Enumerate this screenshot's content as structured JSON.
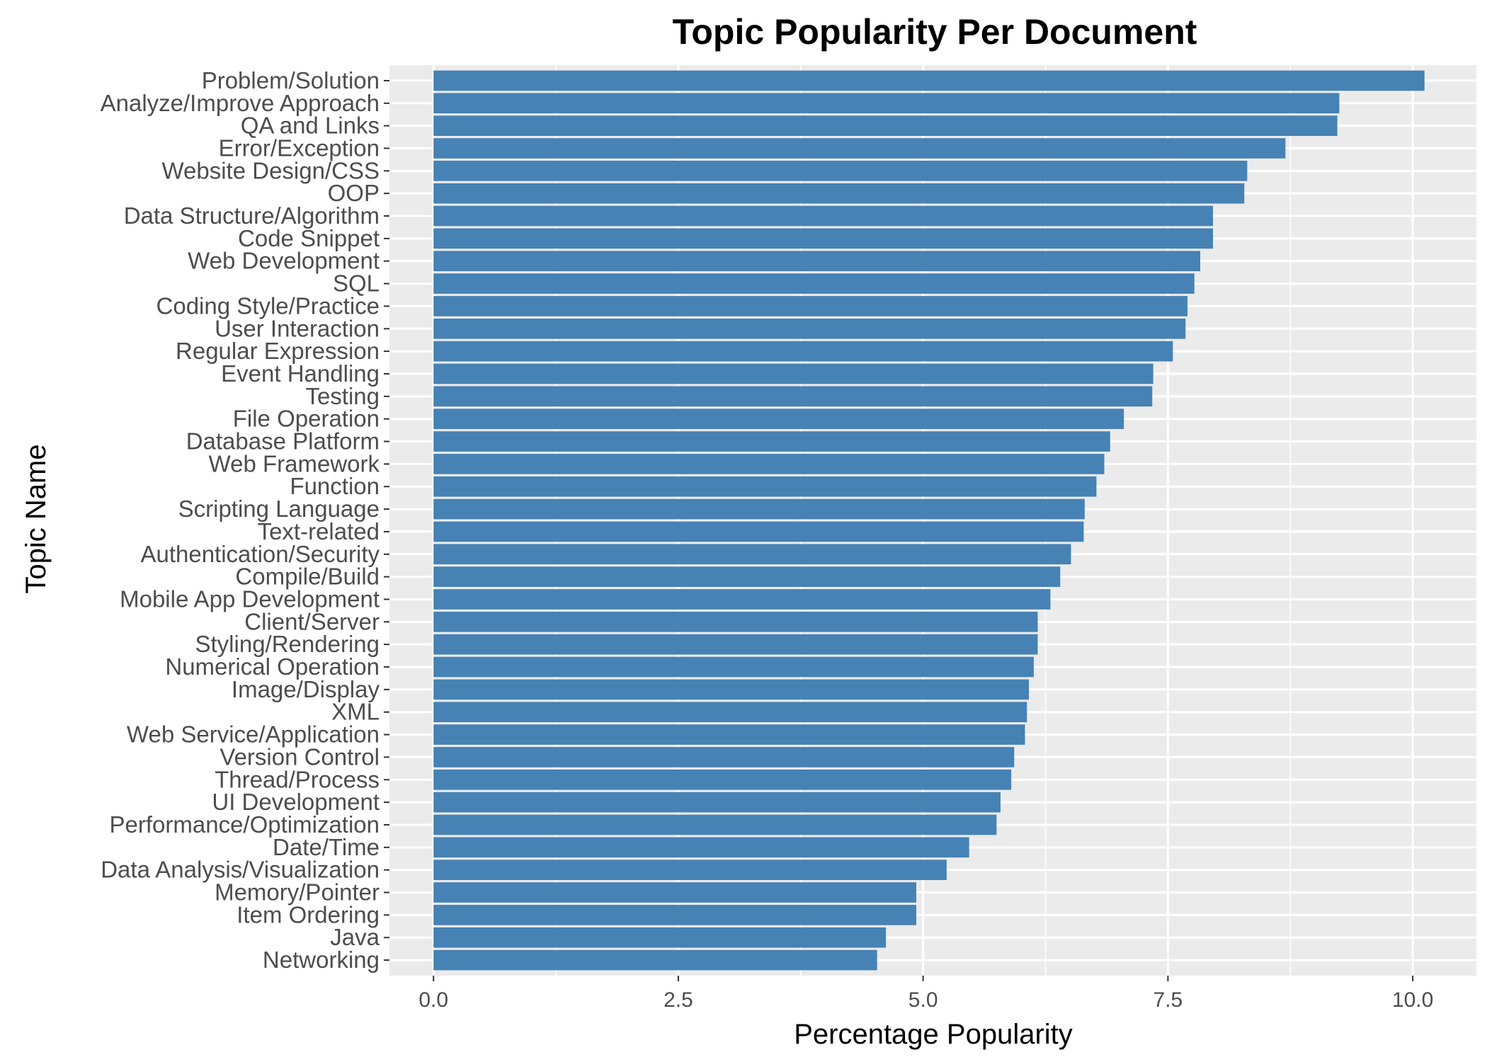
{
  "chart_data": {
    "type": "bar",
    "orientation": "horizontal",
    "title": "Topic Popularity Per Document",
    "xlabel": "Percentage Popularity",
    "ylabel": "Topic Name",
    "xlim": [
      -0.45,
      10.65
    ],
    "xticks": [
      0.0,
      2.5,
      5.0,
      7.5,
      10.0
    ],
    "xtick_labels": [
      "0.0",
      "2.5",
      "5.0",
      "7.5",
      "10.0"
    ],
    "grid": true,
    "legend": "none",
    "bar_color": "#4682B4",
    "panel_color": "#EBEBEB",
    "categories": [
      "Problem/Solution",
      "Analyze/Improve Approach",
      "QA and Links",
      "Error/Exception",
      "Website Design/CSS",
      "OOP",
      "Data Structure/Algorithm",
      "Code Snippet",
      "Web Development",
      "SQL",
      "Coding Style/Practice",
      "User Interaction",
      "Regular Expression",
      "Event Handling",
      "Testing",
      "File Operation",
      "Database Platform",
      "Web Framework",
      "Function",
      "Scripting Language",
      "Text-related",
      "Authentication/Security",
      "Compile/Build",
      "Mobile App Development",
      "Client/Server",
      "Styling/Rendering",
      "Numerical Operation",
      "Image/Display",
      "XML",
      "Web Service/Application",
      "Version Control",
      "Thread/Process",
      "UI Development",
      "Performance/Optimization",
      "Date/Time",
      "Data Analysis/Visualization",
      "Memory/Pointer",
      "Item Ordering",
      "Java",
      "Networking"
    ],
    "values": [
      10.12,
      9.25,
      9.23,
      8.7,
      8.31,
      8.28,
      7.96,
      7.96,
      7.83,
      7.77,
      7.7,
      7.68,
      7.55,
      7.35,
      7.34,
      7.05,
      6.91,
      6.85,
      6.77,
      6.65,
      6.64,
      6.51,
      6.4,
      6.3,
      6.17,
      6.17,
      6.13,
      6.08,
      6.06,
      6.04,
      5.93,
      5.9,
      5.79,
      5.75,
      5.47,
      5.24,
      4.93,
      4.93,
      4.62,
      4.53
    ]
  }
}
